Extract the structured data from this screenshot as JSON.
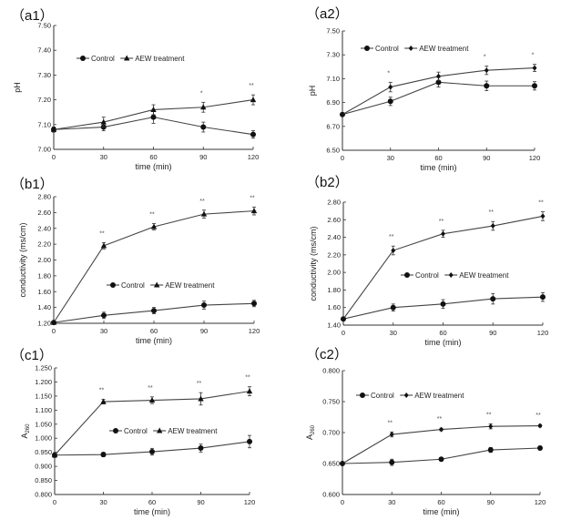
{
  "chart_data": [
    {
      "id": "a1",
      "type": "line",
      "panel_label": "（a1）",
      "xlabel": "time (min)",
      "ylabel": "pH",
      "x": [
        0,
        30,
        60,
        90,
        120
      ],
      "x_ticks": [
        "0",
        "30",
        "60",
        "90",
        "120"
      ],
      "ylim": [
        7.0,
        7.5
      ],
      "y_ticks": [
        "7.00",
        "7.10",
        "7.20",
        "7.30",
        "7.40",
        "7.50"
      ],
      "legend": {
        "position": "top-left",
        "entries": [
          "Control",
          "AEW treatment"
        ]
      },
      "series": [
        {
          "name": "Control",
          "marker": "circle",
          "values": [
            7.08,
            7.09,
            7.13,
            7.09,
            7.06
          ],
          "errors": [
            0.01,
            0.015,
            0.025,
            0.02,
            0.015
          ]
        },
        {
          "name": "AEW treatment",
          "marker": "triangle",
          "values": [
            7.08,
            7.11,
            7.16,
            7.17,
            7.2
          ],
          "errors": [
            0.01,
            0.02,
            0.02,
            0.02,
            0.02
          ]
        }
      ],
      "significance": [
        "",
        "",
        "",
        "*",
        "**"
      ]
    },
    {
      "id": "a2",
      "type": "line",
      "panel_label": "（a2）",
      "xlabel": "time (min)",
      "ylabel": "pH",
      "x": [
        0,
        30,
        60,
        90,
        120
      ],
      "x_ticks": [
        "0",
        "30",
        "60",
        "90",
        "120"
      ],
      "ylim": [
        6.5,
        7.5
      ],
      "y_ticks": [
        "6.50",
        "6.70",
        "6.90",
        "7.10",
        "7.30",
        "7.50"
      ],
      "legend": {
        "position": "top-left",
        "entries": [
          "Control",
          "AEW treatment"
        ]
      },
      "series": [
        {
          "name": "Control",
          "marker": "circle",
          "values": [
            6.8,
            6.91,
            7.07,
            7.04,
            7.04
          ],
          "errors": [
            0.015,
            0.035,
            0.04,
            0.04,
            0.035
          ]
        },
        {
          "name": "AEW treatment",
          "marker": "diamond",
          "values": [
            6.8,
            7.03,
            7.12,
            7.17,
            7.19
          ],
          "errors": [
            0.015,
            0.04,
            0.035,
            0.035,
            0.03
          ]
        }
      ],
      "significance": [
        "",
        "*",
        "",
        "*",
        "*"
      ]
    },
    {
      "id": "b1",
      "type": "line",
      "panel_label": "（b1）",
      "xlabel": "time (min)",
      "ylabel": "conductivity (ms/cm)",
      "x": [
        0,
        30,
        60,
        90,
        120
      ],
      "x_ticks": [
        "0",
        "30",
        "60",
        "90",
        "120"
      ],
      "ylim": [
        1.2,
        2.8
      ],
      "y_ticks": [
        "1.20",
        "1.40",
        "1.60",
        "1.80",
        "2.00",
        "2.20",
        "2.40",
        "2.60",
        "2.80"
      ],
      "legend": {
        "position": "center-right",
        "entries": [
          "Control",
          "AEW treatment"
        ]
      },
      "series": [
        {
          "name": "Control",
          "marker": "circle",
          "values": [
            1.21,
            1.3,
            1.36,
            1.43,
            1.45
          ],
          "errors": [
            0.02,
            0.04,
            0.04,
            0.05,
            0.04
          ]
        },
        {
          "name": "AEW treatment",
          "marker": "triangle",
          "values": [
            1.21,
            2.18,
            2.42,
            2.58,
            2.62
          ],
          "errors": [
            0.02,
            0.04,
            0.04,
            0.05,
            0.05
          ]
        }
      ],
      "significance": [
        "",
        "**",
        "**",
        "**",
        "**"
      ]
    },
    {
      "id": "b2",
      "type": "line",
      "panel_label": "（b2）",
      "xlabel": "time (min)",
      "ylabel": "conductivity (ms/cm)",
      "x": [
        0,
        30,
        60,
        90,
        120
      ],
      "x_ticks": [
        "0",
        "30",
        "60",
        "90",
        "120"
      ],
      "ylim": [
        1.4,
        2.8
      ],
      "y_ticks": [
        "1.40",
        "1.60",
        "1.80",
        "2.00",
        "2.20",
        "2.40",
        "2.60",
        "2.80"
      ],
      "legend": {
        "position": "center-right",
        "entries": [
          "Control",
          "AEW treatment"
        ]
      },
      "series": [
        {
          "name": "Control",
          "marker": "circle",
          "values": [
            1.47,
            1.6,
            1.64,
            1.7,
            1.72
          ],
          "errors": [
            0.02,
            0.04,
            0.05,
            0.06,
            0.05
          ]
        },
        {
          "name": "AEW treatment",
          "marker": "diamond",
          "values": [
            1.47,
            2.25,
            2.44,
            2.53,
            2.64
          ],
          "errors": [
            0.02,
            0.05,
            0.04,
            0.05,
            0.05
          ]
        }
      ],
      "significance": [
        "",
        "**",
        "**",
        "**",
        "**"
      ]
    },
    {
      "id": "c1",
      "type": "line",
      "panel_label": "（c1）",
      "xlabel": "time (min)",
      "ylabel": "A260",
      "x": [
        0,
        30,
        60,
        90,
        120
      ],
      "x_ticks": [
        "0",
        "30",
        "60",
        "90",
        "120"
      ],
      "ylim": [
        0.8,
        1.25
      ],
      "y_ticks": [
        "0.800",
        "0.850",
        "0.900",
        "0.950",
        "1.000",
        "1.050",
        "1.100",
        "1.150",
        "1.200",
        "1.250"
      ],
      "legend": {
        "position": "center-right",
        "entries": [
          "Control",
          "AEW treatment"
        ]
      },
      "series": [
        {
          "name": "Control",
          "marker": "circle",
          "values": [
            0.94,
            0.942,
            0.952,
            0.965,
            0.988
          ],
          "errors": [
            0.008,
            0.008,
            0.012,
            0.014,
            0.022
          ]
        },
        {
          "name": "AEW treatment",
          "marker": "triangle",
          "values": [
            0.94,
            1.13,
            1.135,
            1.14,
            1.167
          ],
          "errors": [
            0.008,
            0.008,
            0.012,
            0.022,
            0.016
          ]
        }
      ],
      "significance": [
        "",
        "**",
        "**",
        "**",
        "**"
      ]
    },
    {
      "id": "c2",
      "type": "line",
      "panel_label": "（c2）",
      "xlabel": "time (min)",
      "ylabel": "A260",
      "x": [
        0,
        30,
        60,
        90,
        120
      ],
      "x_ticks": [
        "0",
        "30",
        "60",
        "90",
        "120"
      ],
      "ylim": [
        0.6,
        0.8
      ],
      "y_ticks": [
        "0.600",
        "0.650",
        "0.700",
        "0.750",
        "0.800"
      ],
      "legend": {
        "position": "top-left",
        "entries": [
          "Control",
          "AEW treatment"
        ]
      },
      "series": [
        {
          "name": "Control",
          "marker": "circle",
          "values": [
            0.65,
            0.652,
            0.657,
            0.672,
            0.675
          ],
          "errors": [
            0.002,
            0.005,
            0.002,
            0.004,
            0.003
          ]
        },
        {
          "name": "AEW treatment",
          "marker": "diamond",
          "values": [
            0.65,
            0.697,
            0.705,
            0.71,
            0.711
          ],
          "errors": [
            0.002,
            0.004,
            0.002,
            0.004,
            0.002
          ]
        }
      ],
      "significance": [
        "",
        "**",
        "**",
        "**",
        "**"
      ]
    }
  ]
}
